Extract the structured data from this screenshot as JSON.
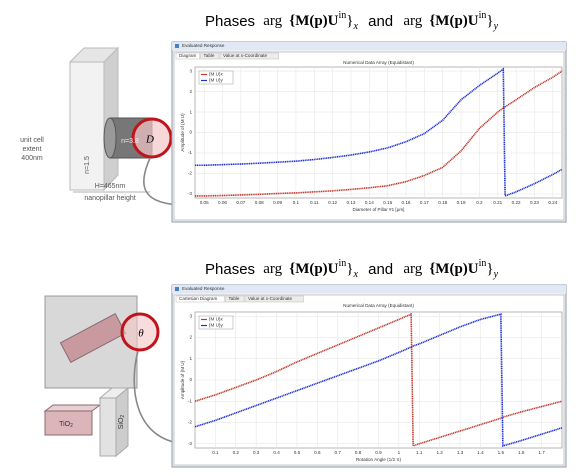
{
  "figure": {
    "heading_prefix": "Phases",
    "heading_term": "arg",
    "heading_body": "{M(p)U",
    "heading_sup": "in",
    "heading_close": "}",
    "heading_sub_x": "x",
    "heading_and": "and",
    "heading_sub_y": "y",
    "top_diagram": {
      "extent_1": "unit cell",
      "extent_2": "extent",
      "extent_3": "400nm",
      "n_slab": "n=1.5",
      "n_pillar": "n=3.8",
      "diameter": "D",
      "height": "H=465nm",
      "height_caption": "nanopillar height"
    },
    "bottom_diagram": {
      "angle": "θ",
      "tio2": "TiO",
      "tio2_sub": "2",
      "sio2": "SiO",
      "sio2_sub": "2"
    }
  },
  "chart_data": [
    {
      "type": "line",
      "window_title": "Evaluated Response",
      "panel_title": "Numerical Data Array (Equidistant)",
      "tabs": [
        "Diagram",
        "Table",
        "Value at x-Coordinate"
      ],
      "xlabel": "Diameter of Pillar #1 [μm]",
      "ylabel": "Amplitude of {M U}",
      "x": [
        0.045,
        0.05,
        0.06,
        0.07,
        0.08,
        0.09,
        0.1,
        0.11,
        0.12,
        0.13,
        0.14,
        0.15,
        0.16,
        0.17,
        0.18,
        0.19,
        0.2,
        0.21,
        0.213,
        0.214,
        0.22,
        0.23,
        0.24,
        0.245
      ],
      "series": [
        {
          "name": "{M U}x",
          "color": "#c0392b",
          "values": [
            -3.1,
            -3.1,
            -3.08,
            -3.05,
            -3.02,
            -2.98,
            -2.95,
            -2.9,
            -2.85,
            -2.78,
            -2.7,
            -2.6,
            -2.4,
            -2.1,
            -1.7,
            -0.9,
            0.2,
            1.0,
            1.2,
            1.25,
            1.6,
            2.2,
            2.7,
            3.0
          ]
        },
        {
          "name": "{M U}y",
          "color": "#1f2fd0",
          "values": [
            -1.6,
            -1.6,
            -1.57,
            -1.54,
            -1.5,
            -1.45,
            -1.4,
            -1.32,
            -1.22,
            -1.1,
            -0.95,
            -0.75,
            -0.45,
            -0.05,
            0.6,
            1.6,
            2.3,
            2.9,
            3.1,
            -3.1,
            -2.9,
            -2.5,
            -2.05,
            -1.8
          ]
        }
      ],
      "xlim": [
        0.045,
        0.245
      ],
      "xticks": [
        0.05,
        0.06,
        0.07,
        0.08,
        0.09,
        0.1,
        0.11,
        0.12,
        0.13,
        0.14,
        0.15,
        0.16,
        0.17,
        0.18,
        0.19,
        0.2,
        0.21,
        0.22,
        0.23,
        0.24
      ],
      "ylim": [
        -3.2,
        3.2
      ],
      "yticks": [
        -3,
        -2,
        -1,
        0,
        1,
        2,
        3
      ],
      "grid": true,
      "legend": "upper left"
    },
    {
      "type": "line",
      "window_title": "Evaluated Response",
      "panel_title": "Numerical Data Array (Equidistant)",
      "tabs": [
        "Cartesian Diagram",
        "Table",
        "Value at x-Coordinate"
      ],
      "xlabel": "Rotation Angle (1/2 π)",
      "ylabel": "Amplitude of {M U}",
      "x": [
        0,
        0.1,
        0.2,
        0.3,
        0.4,
        0.5,
        0.6,
        0.7,
        0.8,
        0.9,
        1.0,
        1.06,
        1.07,
        1.1,
        1.2,
        1.3,
        1.4,
        1.5,
        1.51,
        1.6,
        1.7,
        1.8
      ],
      "series": [
        {
          "name": "{M U}x",
          "color": "#c0392b",
          "values": [
            -1.0,
            -0.7,
            -0.35,
            0.0,
            0.4,
            0.85,
            1.25,
            1.65,
            2.05,
            2.45,
            2.85,
            3.1,
            -3.1,
            -3.0,
            -2.7,
            -2.4,
            -2.1,
            -1.8,
            -1.75,
            -1.5,
            -1.25,
            -1.0
          ]
        },
        {
          "name": "{M U}y",
          "color": "#1f2fd0",
          "values": [
            -2.2,
            -1.9,
            -1.55,
            -1.2,
            -0.85,
            -0.5,
            -0.15,
            0.2,
            0.55,
            0.9,
            1.3,
            1.55,
            1.6,
            1.7,
            2.1,
            2.5,
            2.85,
            3.1,
            -3.1,
            -2.85,
            -2.55,
            -2.25
          ]
        }
      ],
      "xlim": [
        0,
        1.8
      ],
      "xticks": [
        0.1,
        0.2,
        0.3,
        0.4,
        0.5,
        0.6,
        0.7,
        0.8,
        0.9,
        1,
        1.1,
        1.2,
        1.3,
        1.4,
        1.5,
        1.6,
        1.7
      ],
      "ylim": [
        -3.2,
        3.2
      ],
      "yticks": [
        -3,
        -2,
        -1,
        0,
        1,
        2,
        3
      ],
      "grid": true,
      "legend": "upper left"
    }
  ]
}
